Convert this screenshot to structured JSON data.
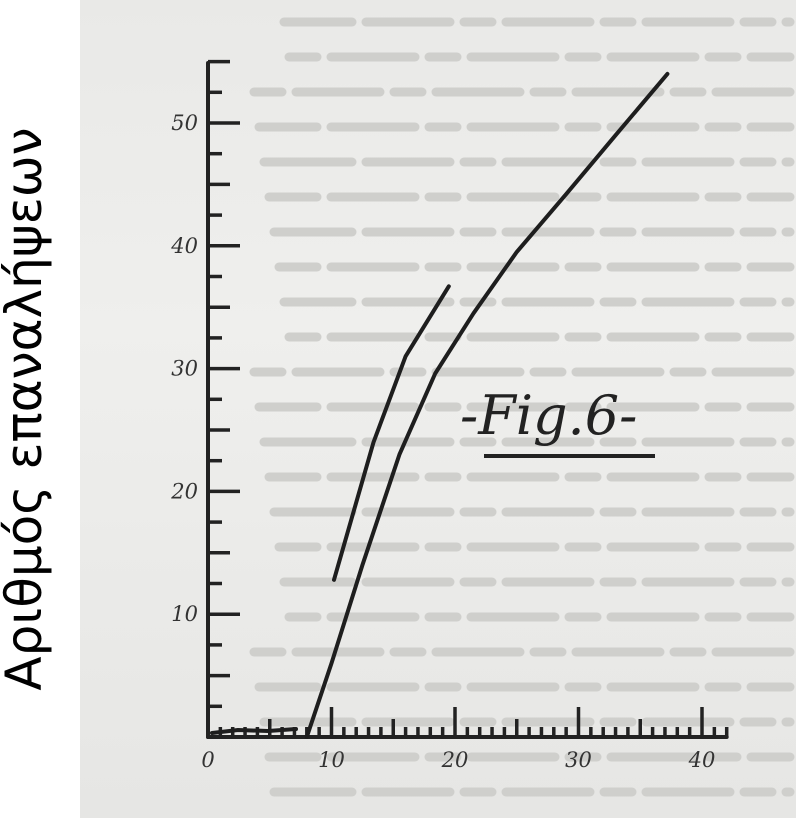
{
  "chart_data": {
    "type": "line",
    "title": "",
    "annotation": "-Fig.6-",
    "ylabel": "Αριθμός επαναλήψεων",
    "xlabel": "",
    "xlim": [
      0,
      42
    ],
    "ylim": [
      0,
      57
    ],
    "x_ticks": [
      0,
      10,
      20,
      30,
      40
    ],
    "y_ticks": [
      10,
      20,
      30,
      40,
      50
    ],
    "grid": false,
    "series": [
      {
        "points": [
          [
            10.2,
            12.8
          ],
          [
            13.4,
            24
          ],
          [
            16,
            31
          ],
          [
            19.5,
            36.7
          ]
        ]
      },
      {
        "points": [
          [
            8,
            0
          ],
          [
            10,
            6
          ],
          [
            12.5,
            14
          ],
          [
            15.5,
            23
          ],
          [
            18.4,
            29.6
          ],
          [
            21.5,
            34.5
          ],
          [
            25,
            39.5
          ],
          [
            29,
            44.2
          ],
          [
            33,
            49
          ],
          [
            37.2,
            54
          ]
        ]
      }
    ]
  }
}
